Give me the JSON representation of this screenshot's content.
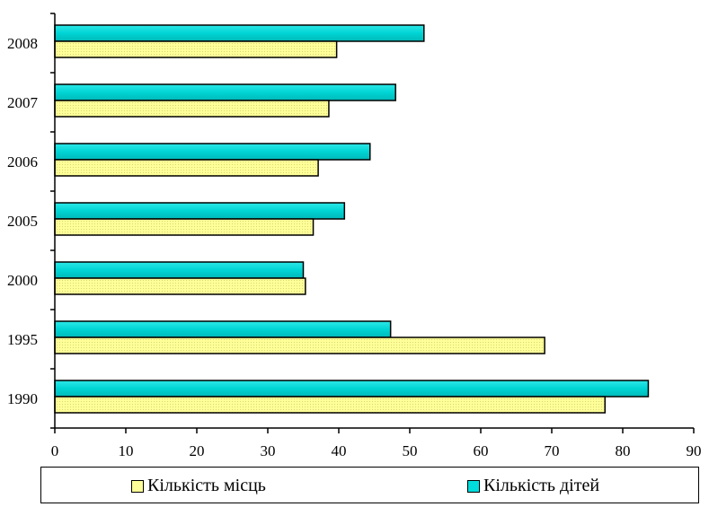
{
  "chart_data": {
    "type": "bar",
    "orientation": "horizontal",
    "categories": [
      "1990",
      "1995",
      "2000",
      "2005",
      "2006",
      "2007",
      "2008"
    ],
    "series": [
      {
        "name": "Кількість місць",
        "values": [
          77.5,
          69,
          35.3,
          36.4,
          37.1,
          38.6,
          39.7
        ],
        "color": "#ffff99"
      },
      {
        "name": "Кількість дітей",
        "values": [
          83.6,
          47.3,
          35,
          40.8,
          44.4,
          48,
          52
        ],
        "color": "#00dcdc"
      }
    ],
    "xlim": [
      0,
      90
    ],
    "x_ticks": [
      "0",
      "10",
      "20",
      "30",
      "40",
      "50",
      "60",
      "70",
      "80",
      "90"
    ],
    "grid": false,
    "legend_position": "bottom"
  }
}
